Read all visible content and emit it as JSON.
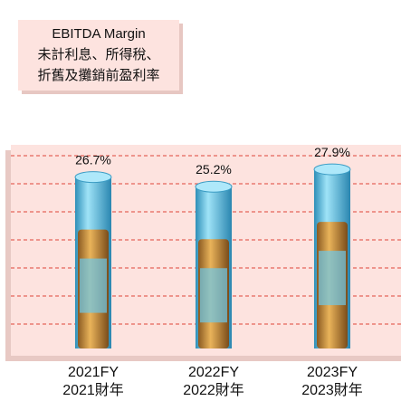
{
  "chart_data": {
    "type": "bar",
    "title": [
      "EBITDA Margin",
      "未計利息、所得稅、",
      "折舊及攤銷前盈利率"
    ],
    "categories": [
      [
        "2021FY",
        "2021財年"
      ],
      [
        "2022FY",
        "2022財年"
      ],
      [
        "2023FY",
        "2023財年"
      ]
    ],
    "values": [
      26.7,
      25.2,
      27.9
    ],
    "value_labels": [
      "26.7%",
      "25.2%",
      "27.9%"
    ],
    "color": "#5bc3e8",
    "ylim": [
      0,
      32
    ]
  }
}
